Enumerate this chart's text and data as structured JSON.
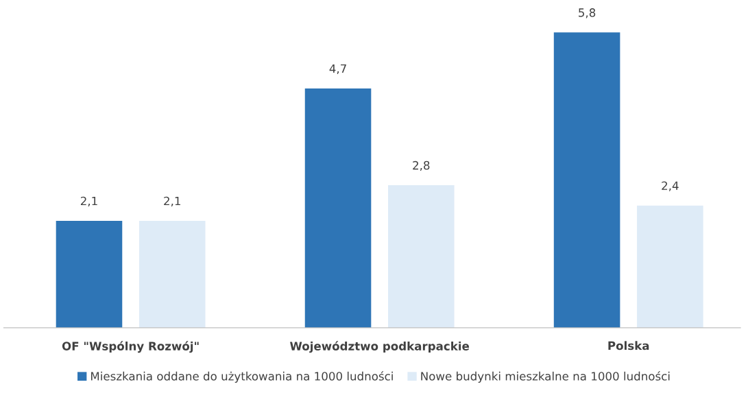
{
  "chart_data": {
    "type": "bar",
    "categories": [
      "OF \"Wspólny Rozwój\"",
      "Województwo podkarpackie",
      "Polska"
    ],
    "series": [
      {
        "name": "Mieszkania oddane do użytkowania na 1000 ludności",
        "color": "#2e75b6",
        "values": [
          2.1,
          4.7,
          5.8
        ],
        "value_labels": [
          "2,1",
          "4,7",
          "5,8"
        ]
      },
      {
        "name": "Nowe budynki mieszkalne na 1000 ludności",
        "color": "#deebf7",
        "values": [
          2.1,
          2.8,
          2.4
        ],
        "value_labels": [
          "2,1",
          "2,8",
          "2,4"
        ]
      }
    ],
    "grid": false,
    "legend": "bottom",
    "tick_labels": "x"
  }
}
